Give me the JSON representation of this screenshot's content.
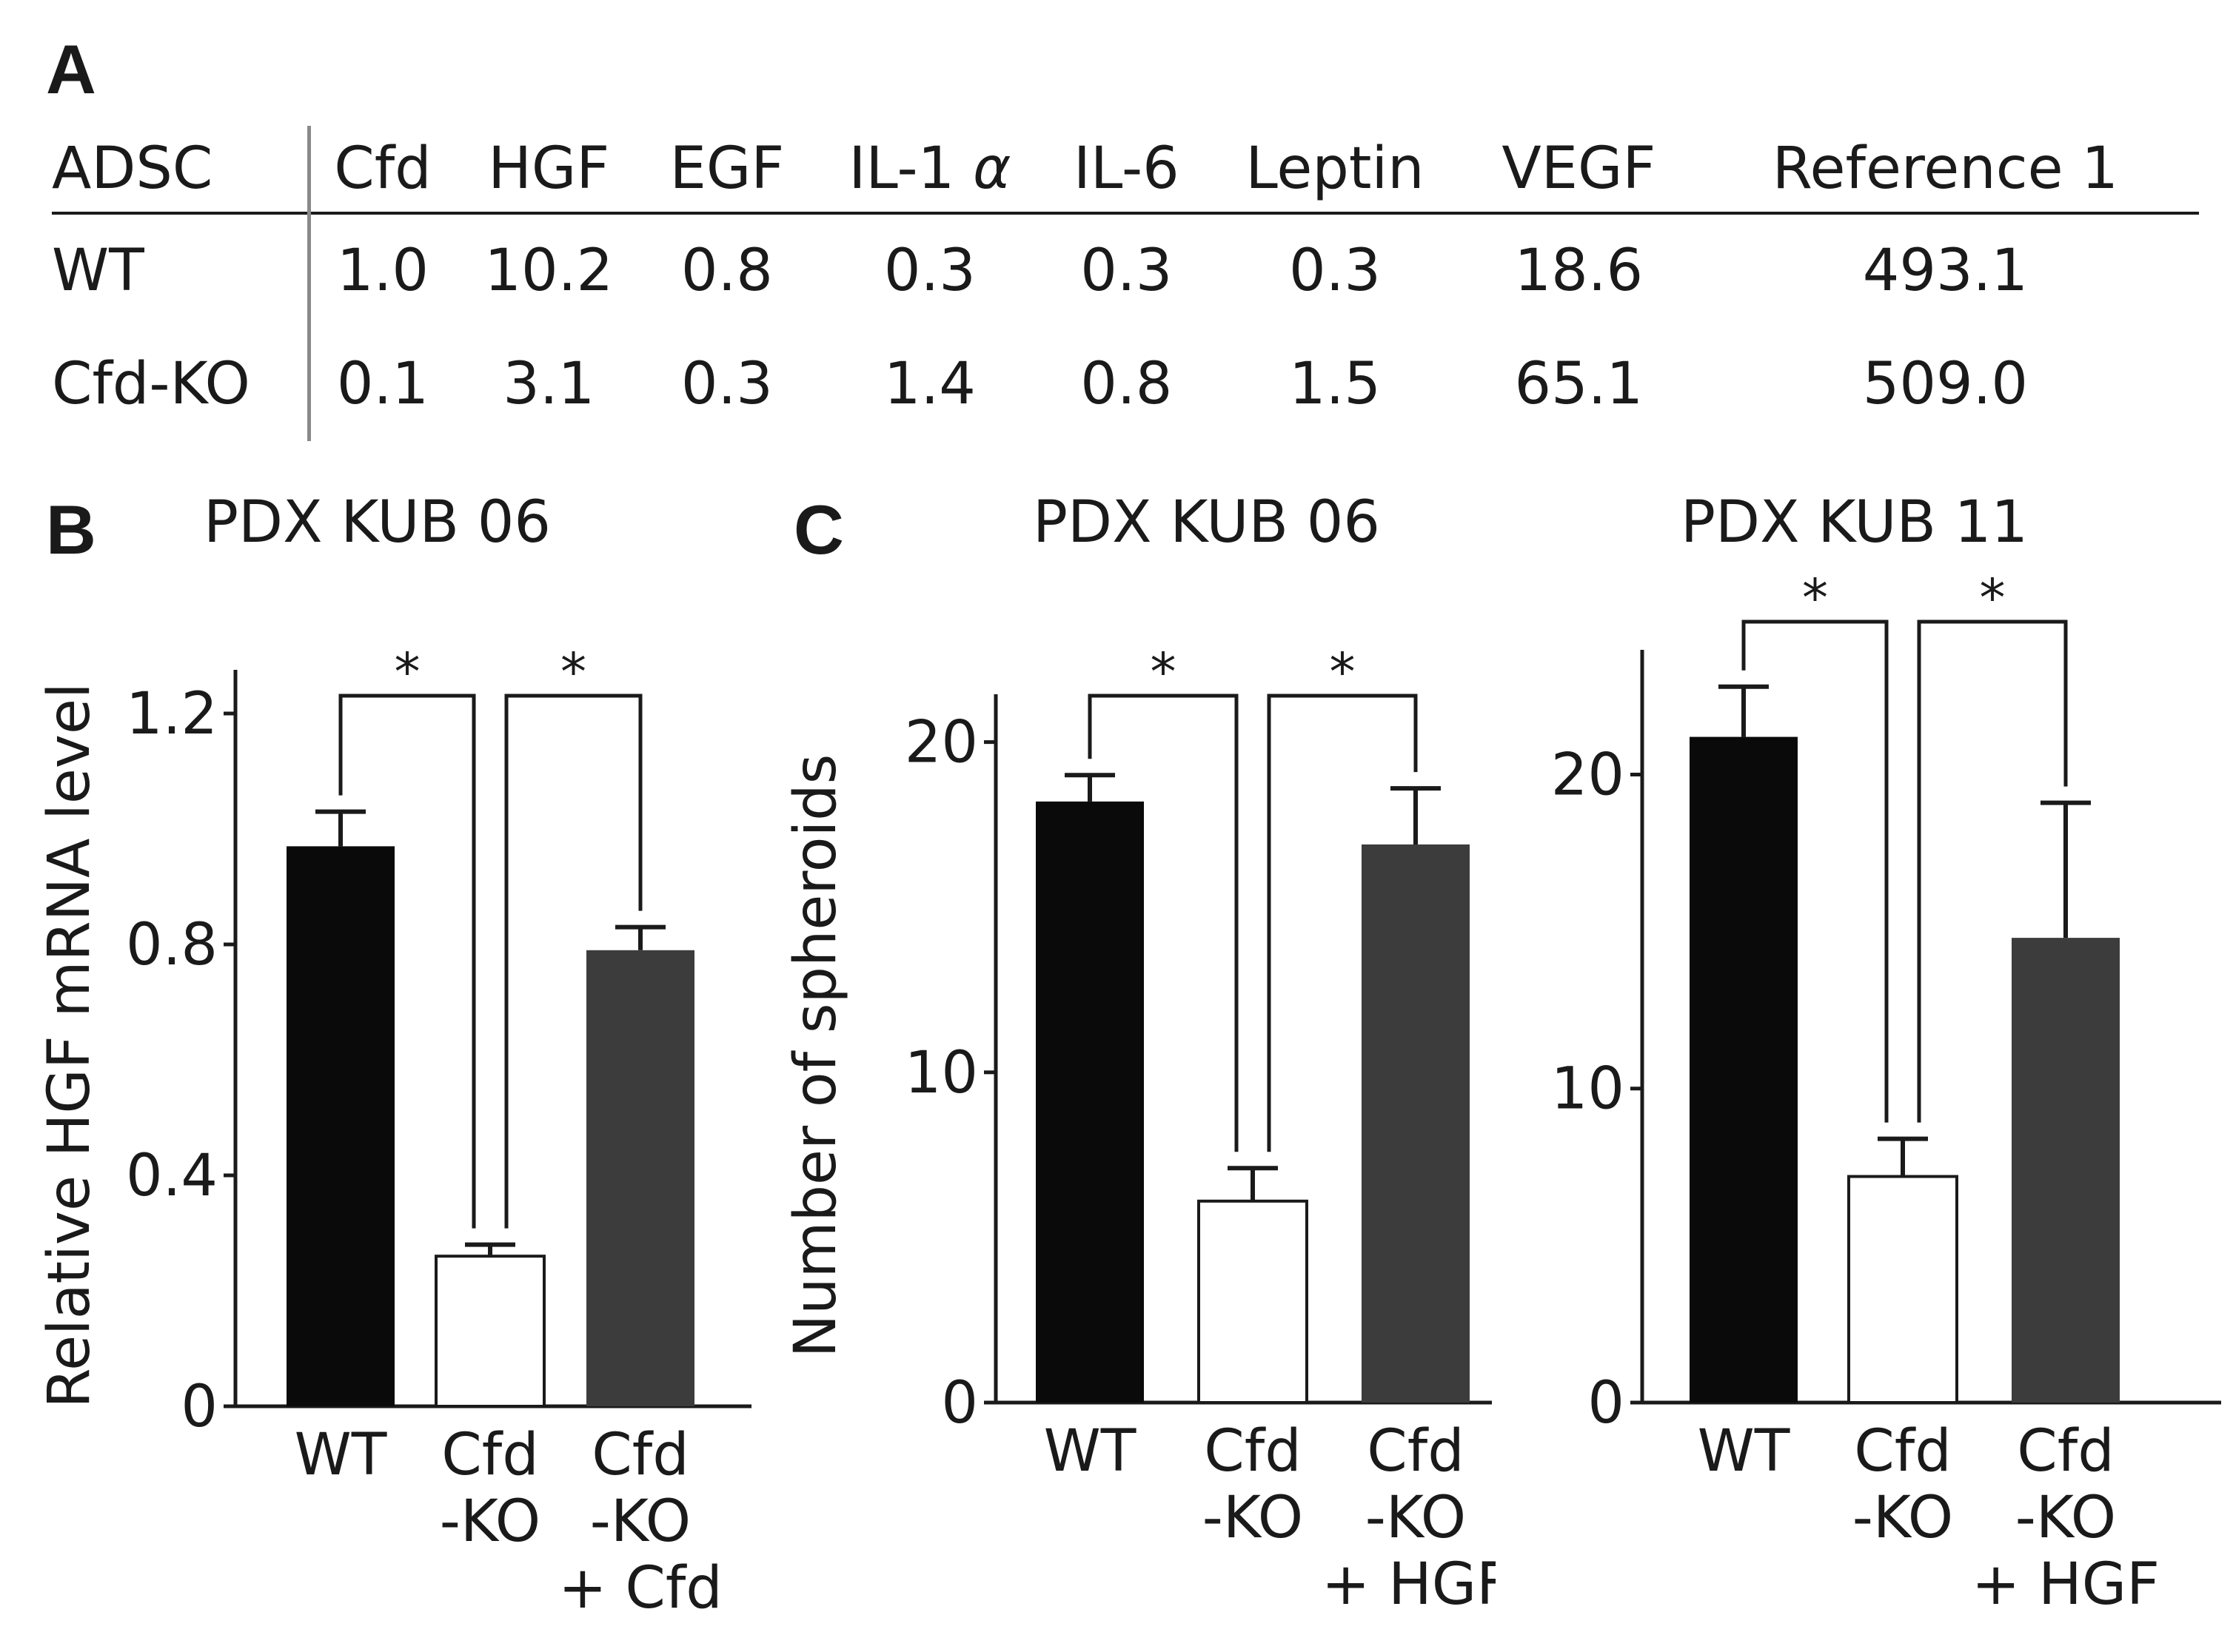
{
  "panel_labels": {
    "a": "A",
    "b": "B",
    "c": "C"
  },
  "table": {
    "corner": "ADSC",
    "columns": [
      "Cfd",
      "HGF",
      "EGF",
      "IL-1",
      "IL-6",
      "Leptin",
      "VEGF",
      "Reference 1"
    ],
    "alpha": "α",
    "rows": [
      {
        "label": "WT",
        "values": [
          "1.0",
          "10.2",
          "0.8",
          "0.3",
          "0.3",
          "0.3",
          "18.6",
          "493.1"
        ]
      },
      {
        "label": "Cfd-KO",
        "values": [
          "0.1",
          "3.1",
          "0.3",
          "1.4",
          "0.8",
          "1.5",
          "65.1",
          "509.0"
        ]
      }
    ]
  },
  "chart_data": [
    {
      "type": "bar",
      "title": "PDX  KUB 06",
      "ylabel": "Relative HGF mRNA level",
      "xlabel": "",
      "ylim": [
        0,
        1.25
      ],
      "yticks": [
        0,
        0.4,
        0.8,
        1.2
      ],
      "ytick_labels": [
        "0",
        "0.4",
        "0.8",
        "1.2"
      ],
      "categories": [
        [
          "WT"
        ],
        [
          "Cfd",
          "-KO"
        ],
        [
          "Cfd",
          "-KO",
          "+ Cfd"
        ]
      ],
      "values": [
        0.97,
        0.26,
        0.79
      ],
      "errors": [
        0.06,
        0.02,
        0.04
      ],
      "colors": [
        "#0a0a0a",
        "#ffffff",
        "#3c3c3c"
      ],
      "significance": [
        {
          "from": 0,
          "to": 1,
          "label": "*"
        },
        {
          "from": 1,
          "to": 2,
          "label": "*"
        }
      ]
    },
    {
      "type": "bar",
      "title": "PDX  KUB 06",
      "ylabel": "Number of spheroids",
      "xlabel": "",
      "ylim": [
        0,
        21
      ],
      "yticks": [
        0,
        10,
        20
      ],
      "ytick_labels": [
        "0",
        "10",
        "20"
      ],
      "categories": [
        [
          "WT"
        ],
        [
          "Cfd",
          "-KO"
        ],
        [
          "Cfd",
          "-KO",
          "+ HGF"
        ]
      ],
      "values": [
        18.2,
        6.1,
        16.9
      ],
      "errors": [
        0.8,
        1.0,
        1.7
      ],
      "colors": [
        "#0a0a0a",
        "#ffffff",
        "#3c3c3c"
      ],
      "significance": [
        {
          "from": 0,
          "to": 1,
          "label": "*"
        },
        {
          "from": 1,
          "to": 2,
          "label": "*"
        }
      ]
    },
    {
      "type": "bar",
      "title": "PDX  KUB 11",
      "ylabel": "",
      "xlabel": "",
      "ylim": [
        0,
        23.5
      ],
      "yticks": [
        0,
        10,
        20
      ],
      "ytick_labels": [
        "0",
        "10",
        "20"
      ],
      "categories": [
        [
          "WT"
        ],
        [
          "Cfd",
          "-KO"
        ],
        [
          "Cfd",
          "-KO",
          "+ HGF"
        ]
      ],
      "values": [
        21.2,
        7.2,
        14.8
      ],
      "errors": [
        1.6,
        1.2,
        4.3
      ],
      "colors": [
        "#0a0a0a",
        "#ffffff",
        "#3c3c3c"
      ],
      "significance": [
        {
          "from": 0,
          "to": 1,
          "label": "*"
        },
        {
          "from": 1,
          "to": 2,
          "label": "*"
        }
      ]
    }
  ]
}
